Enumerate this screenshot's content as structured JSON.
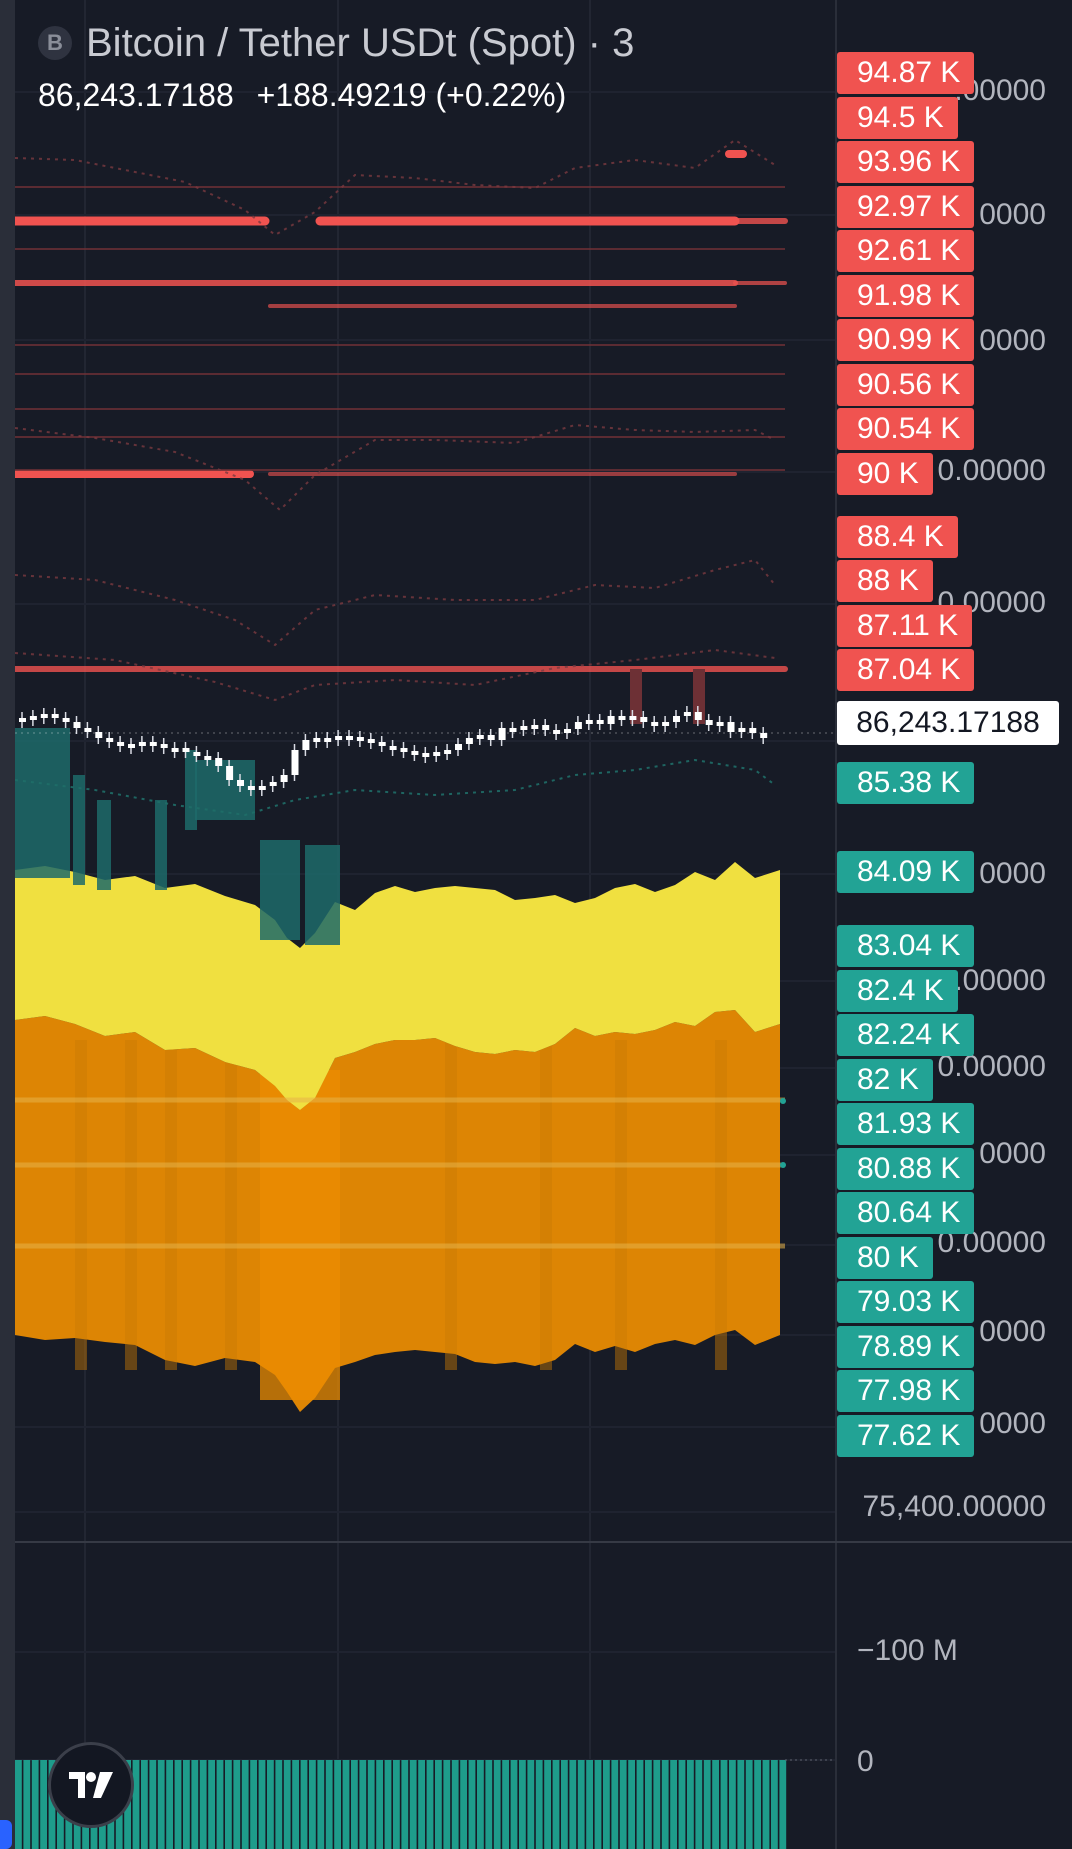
{
  "header": {
    "symbol_icon_letter": "B",
    "title": "Bitcoin / Tether USDt (Spot) · 3",
    "last_price": "86,243.17188",
    "change": "+188.49219 (+0.22%)"
  },
  "price_axis": {
    "ticks": [
      ".00000",
      "0000",
      "0000",
      "0.00000",
      "0.00000",
      "0000",
      ".00000",
      "0.00000",
      "0000",
      "0.00000",
      "0000",
      "0000",
      "75,400.00000"
    ],
    "current_price": "86,243.17188"
  },
  "resistance_labels": [
    "94.87 K",
    "94.5 K",
    "93.96 K",
    "92.97 K",
    "92.61 K",
    "91.98 K",
    "90.99 K",
    "90.56 K",
    "90.54 K",
    "90 K",
    "88.4 K",
    "88 K",
    "87.11 K",
    "87.04 K"
  ],
  "support_labels": [
    "85.38 K",
    "84.09 K",
    "83.04 K",
    "82.4 K",
    "82.24 K",
    "82 K",
    "81.93 K",
    "80.88 K",
    "80.64 K",
    "80 K",
    "79.03 K",
    "78.89 K",
    "77.98 K",
    "77.62 K"
  ],
  "volume_axis": {
    "top_label": "−100 M",
    "zero_label": "0"
  },
  "colors": {
    "background": "#171b26",
    "resistance": "#f05350",
    "support": "#22a395",
    "band_yellow": "#f0e040",
    "band_orange": "#dd8504"
  },
  "icons": {
    "logo": "tradingview-logo-icon",
    "symbol": "bitcoin-icon"
  }
}
